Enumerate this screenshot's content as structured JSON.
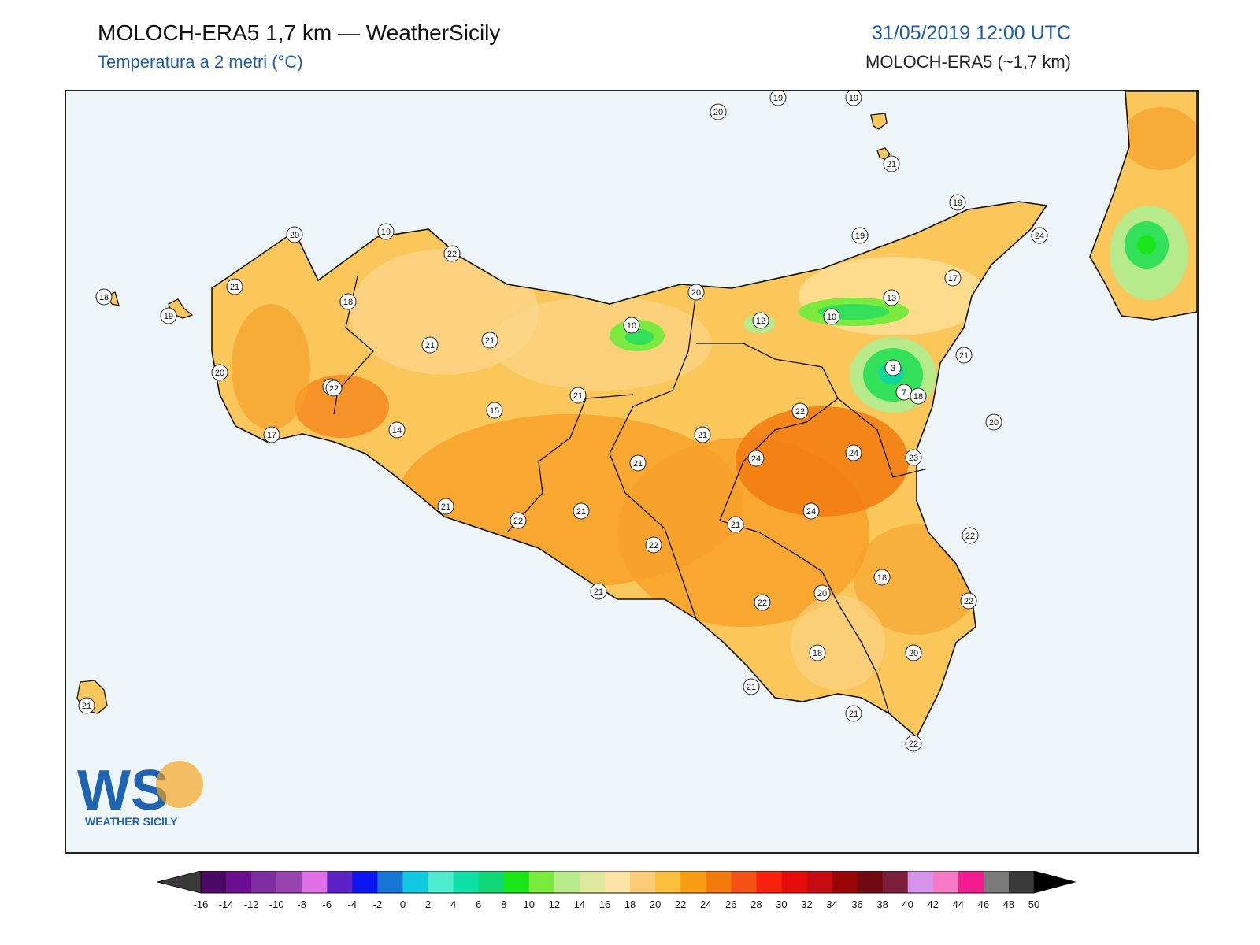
{
  "header": {
    "title": "MOLOCH-ERA5 1,7 km — WeatherSicily",
    "subtitle": "Temperatura a 2 metri (°C)",
    "datetime": "31/05/2019 12:00 UTC",
    "model": "MOLOCH-ERA5 (~1,7 km)"
  },
  "logo": {
    "letters": "WS",
    "text": "WEATHER SICILY"
  },
  "colors": {
    "sea": "#eef5f9",
    "land_base": "#fbc65a",
    "warm": "#f7a12a",
    "hot": "#f27d12",
    "cool": "#fde09a",
    "green": "#33e05a"
  },
  "station_labels": [
    "20",
    "19",
    "19",
    "21",
    "19",
    "20",
    "19",
    "22",
    "21",
    "18",
    "18",
    "19",
    "21",
    "22",
    "20",
    "21",
    "20",
    "19",
    "17",
    "10",
    "12",
    "10",
    "13",
    "19",
    "24",
    "3",
    "7",
    "21",
    "22",
    "20",
    "18",
    "15",
    "21",
    "22",
    "17",
    "14",
    "21",
    "21",
    "24",
    "24",
    "23",
    "21",
    "22",
    "21",
    "21",
    "24",
    "22",
    "22",
    "18",
    "21",
    "20",
    "22",
    "22",
    "21",
    "18",
    "20",
    "21",
    "21",
    "22",
    "20"
  ],
  "colorbar": {
    "ticks": [
      "-16",
      "-14",
      "-12",
      "-10",
      "-8",
      "-6",
      "-4",
      "-2",
      "0",
      "2",
      "4",
      "6",
      "8",
      "10",
      "12",
      "14",
      "16",
      "18",
      "20",
      "22",
      "24",
      "26",
      "28",
      "30",
      "32",
      "34",
      "36",
      "38",
      "40",
      "42",
      "44",
      "46",
      "48",
      "50"
    ],
    "colors": [
      "#4a0a63",
      "#6a0f8e",
      "#7e2ea0",
      "#9844b0",
      "#de6fe6",
      "#5a22c4",
      "#0c16f0",
      "#1875d3",
      "#12c9e2",
      "#51ecd0",
      "#10e0a8",
      "#10d673",
      "#18e618",
      "#7aea3e",
      "#b6ea8a",
      "#dde89c",
      "#fde3a8",
      "#fccb7a",
      "#fbbf3e",
      "#f89d12",
      "#f37a0c",
      "#f25314",
      "#f8210e",
      "#e60c0c",
      "#c40c12",
      "#9a0508",
      "#6e0a10",
      "#7a1e3a",
      "#d593ea",
      "#f57bc6",
      "#f21b8f",
      "#7a7a7a",
      "#3a3a3a"
    ]
  }
}
